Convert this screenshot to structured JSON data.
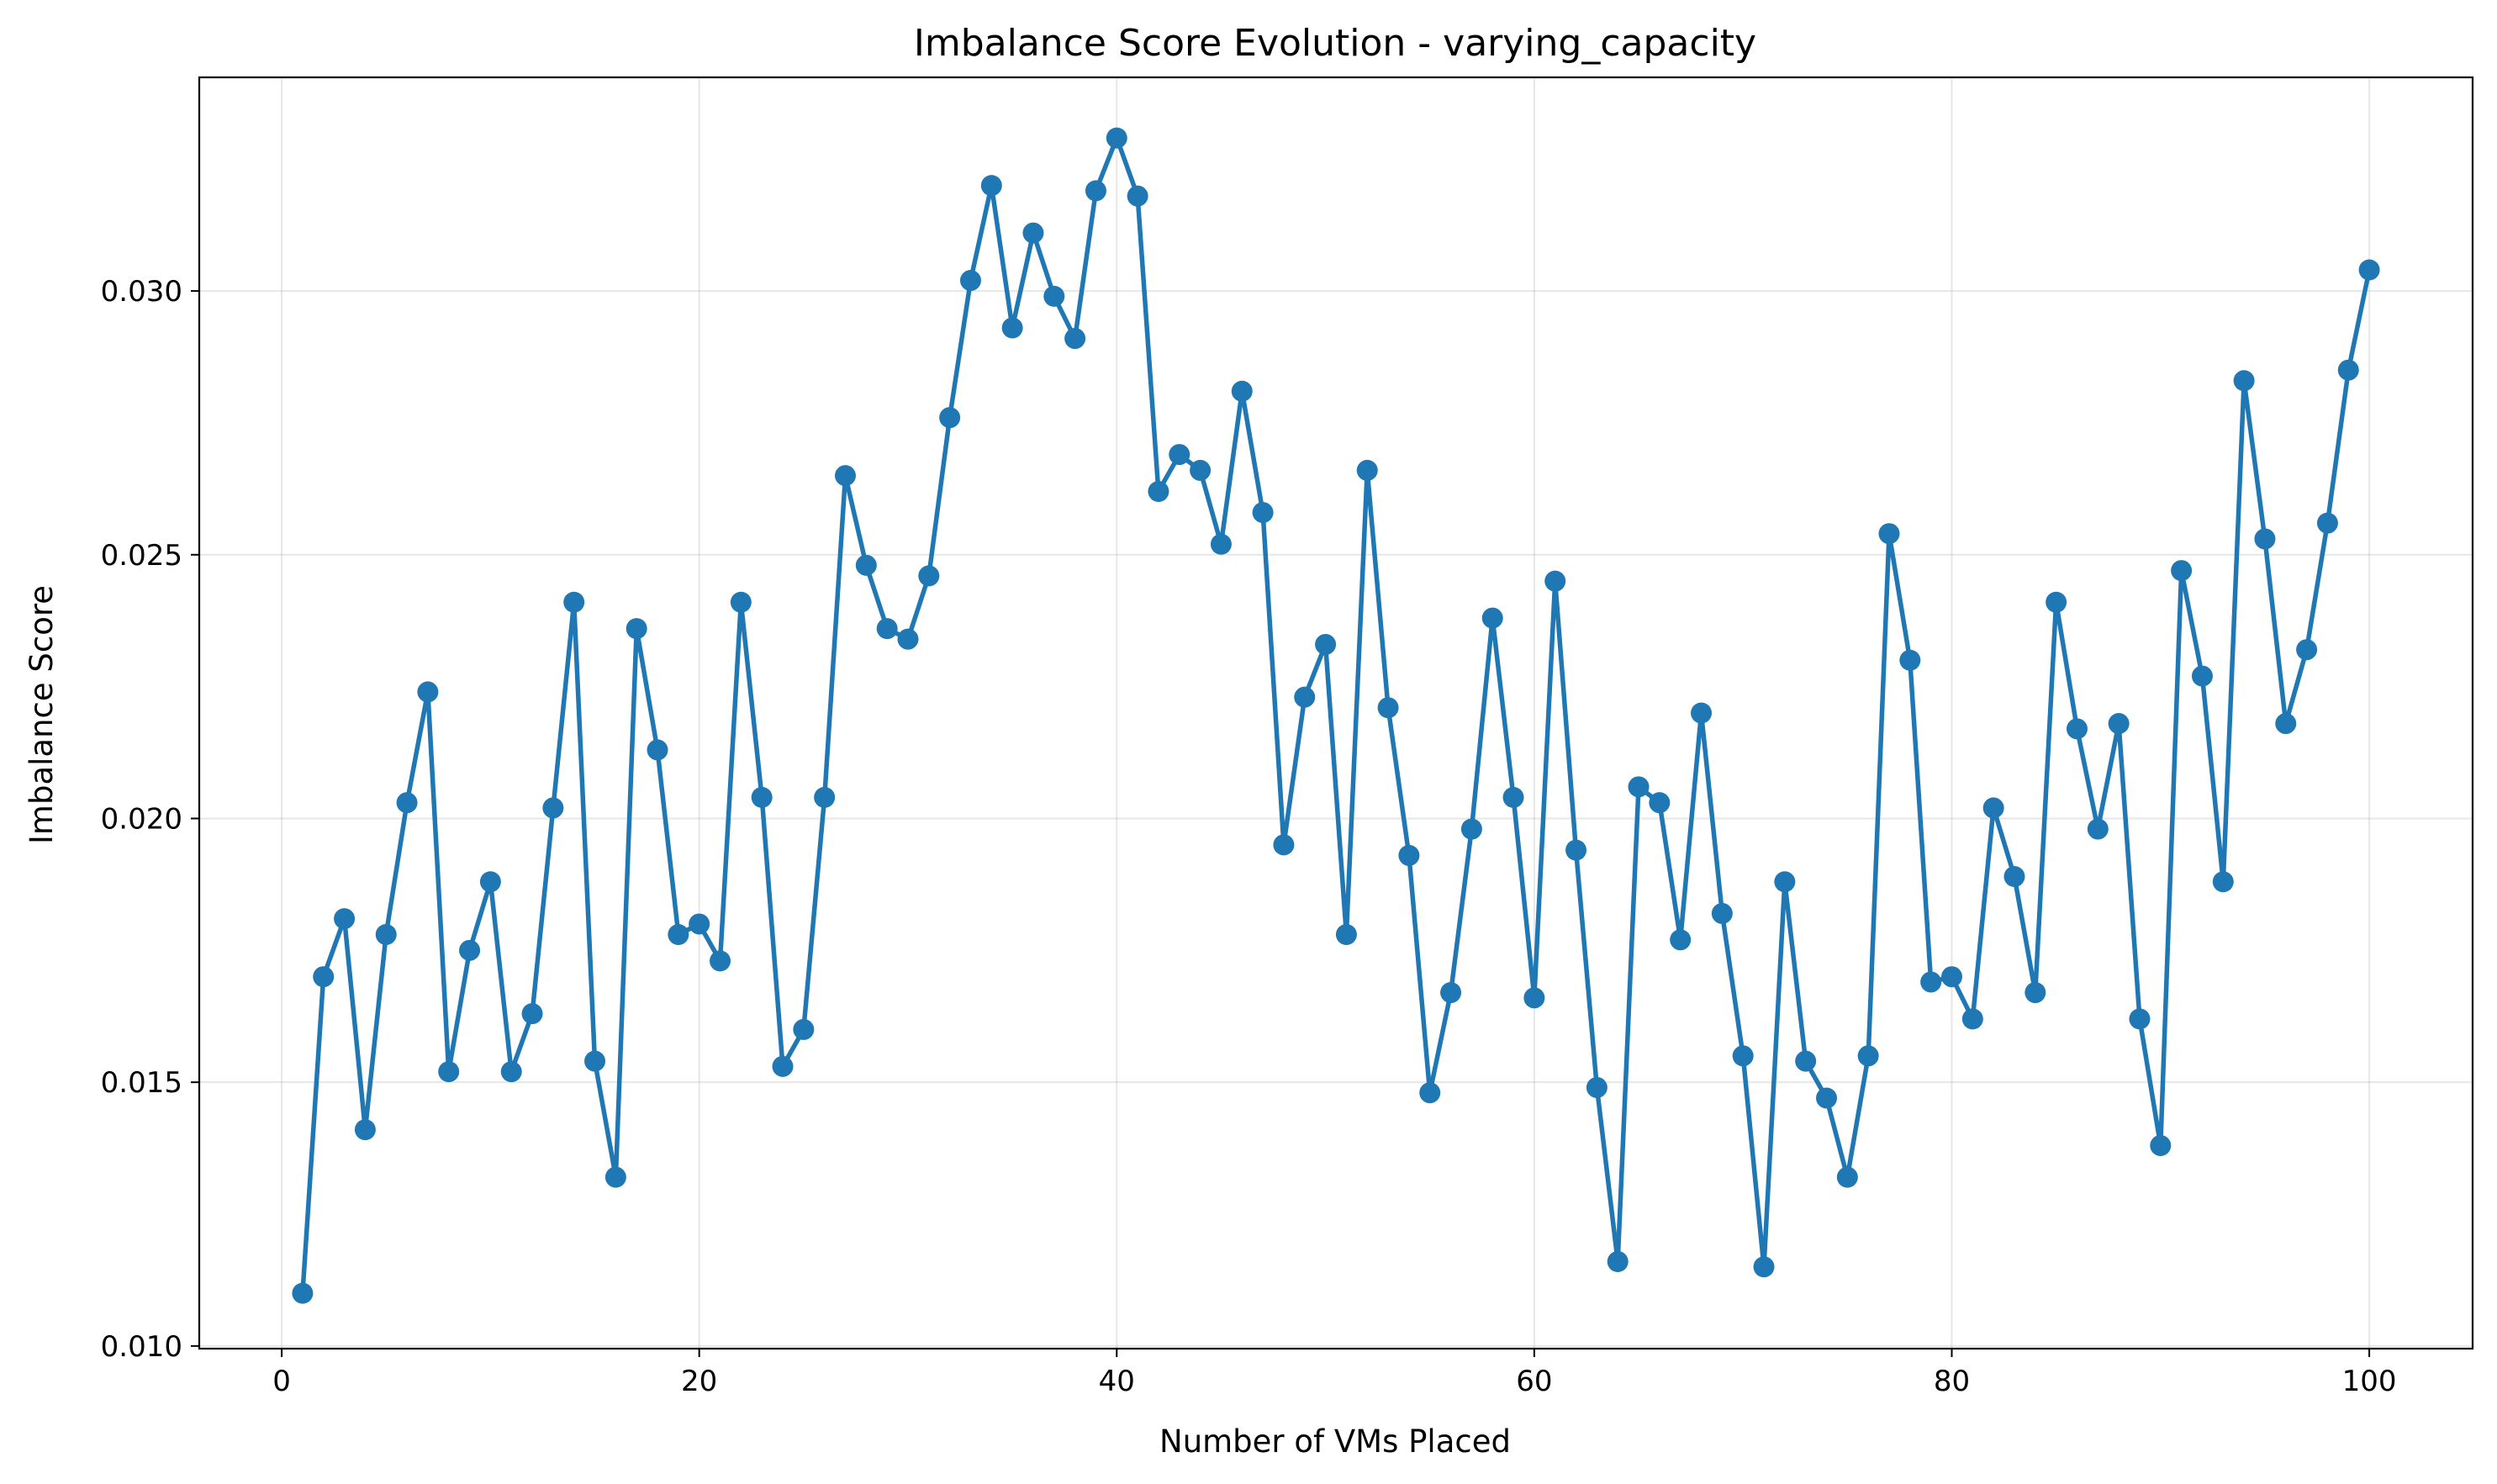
{
  "chart_data": {
    "type": "line",
    "title": "Imbalance Score Evolution - varying_capacity",
    "xlabel": "Number of VMs Placed",
    "ylabel": "Imbalance Score",
    "xlim": [
      -3.95,
      104.95
    ],
    "ylim": [
      0.00995,
      0.03405
    ],
    "xticks": [
      0,
      20,
      40,
      60,
      80,
      100
    ],
    "xtick_labels": [
      "0",
      "20",
      "40",
      "60",
      "80",
      "100"
    ],
    "yticks": [
      0.01,
      0.015,
      0.02,
      0.025,
      0.03
    ],
    "ytick_labels": [
      "0.010",
      "0.015",
      "0.020",
      "0.025",
      "0.030"
    ],
    "grid": true,
    "legend": "none",
    "series": [
      {
        "color": "#1f77b4",
        "marker": "circle",
        "x": [
          1,
          2,
          3,
          4,
          5,
          6,
          7,
          8,
          9,
          10,
          11,
          12,
          13,
          14,
          15,
          16,
          17,
          18,
          19,
          20,
          21,
          22,
          23,
          24,
          25,
          26,
          27,
          28,
          29,
          30,
          31,
          32,
          33,
          34,
          35,
          36,
          37,
          38,
          39,
          40,
          41,
          42,
          43,
          44,
          45,
          46,
          47,
          48,
          49,
          50,
          51,
          52,
          53,
          54,
          55,
          56,
          57,
          58,
          59,
          60,
          61,
          62,
          63,
          64,
          65,
          66,
          67,
          68,
          69,
          70,
          71,
          72,
          73,
          74,
          75,
          76,
          77,
          78,
          79,
          80,
          81,
          82,
          83,
          84,
          85,
          86,
          87,
          88,
          89,
          90,
          91,
          92,
          93,
          94,
          95,
          96,
          97,
          98,
          99,
          100
        ],
        "y": [
          0.011,
          0.017,
          0.0181,
          0.0141,
          0.0178,
          0.0203,
          0.0224,
          0.0152,
          0.0175,
          0.0188,
          0.0152,
          0.0163,
          0.0202,
          0.0241,
          0.0154,
          0.0132,
          0.0236,
          0.0213,
          0.0178,
          0.018,
          0.0173,
          0.0241,
          0.0204,
          0.0153,
          0.016,
          0.0204,
          0.0265,
          0.0248,
          0.0236,
          0.0234,
          0.0246,
          0.0276,
          0.0302,
          0.032,
          0.0293,
          0.0311,
          0.0299,
          0.0291,
          0.0319,
          0.0329,
          0.0318,
          0.0262,
          0.0269,
          0.0266,
          0.0252,
          0.0281,
          0.0258,
          0.0195,
          0.0223,
          0.0233,
          0.0178,
          0.0266,
          0.0221,
          0.0193,
          0.0148,
          0.0167,
          0.0198,
          0.0238,
          0.0204,
          0.0166,
          0.0245,
          0.0194,
          0.0149,
          0.0116,
          0.0206,
          0.0203,
          0.0177,
          0.022,
          0.0182,
          0.0155,
          0.0115,
          0.0188,
          0.0154,
          0.0147,
          0.0132,
          0.0155,
          0.0254,
          0.023,
          0.0169,
          0.017,
          0.0162,
          0.0202,
          0.0189,
          0.0167,
          0.0241,
          0.0217,
          0.0198,
          0.0218,
          0.0162,
          0.0138,
          0.0247,
          0.0227,
          0.0188,
          0.0283,
          0.0253,
          0.0218,
          0.0232,
          0.0256,
          0.0285,
          0.0304
        ]
      }
    ]
  }
}
